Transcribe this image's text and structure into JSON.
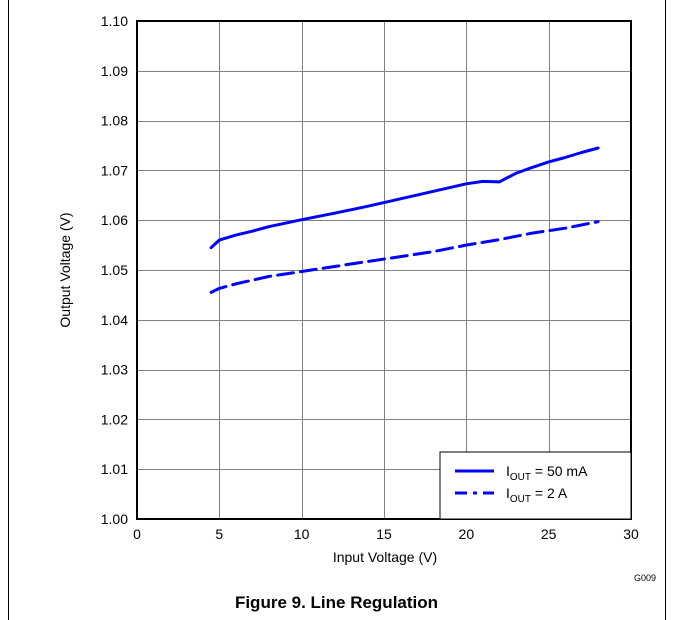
{
  "chart_data": {
    "type": "line",
    "title": "",
    "xlabel": "Input Voltage (V)",
    "ylabel": "Output Voltage (V)",
    "xlim": [
      0,
      30
    ],
    "ylim": [
      1.0,
      1.1
    ],
    "xticks": [
      "0",
      "5",
      "10",
      "15",
      "20",
      "25",
      "30"
    ],
    "yticks": [
      "1.00",
      "1.01",
      "1.02",
      "1.03",
      "1.04",
      "1.05",
      "1.06",
      "1.07",
      "1.08",
      "1.09",
      "1.10"
    ],
    "grid": true,
    "legend_position": "bottom-right",
    "series": [
      {
        "name_prefix": "I",
        "name_sub": "OUT",
        "name_suffix": "= 50 mA",
        "style": "solid",
        "color": "#0000ff",
        "x": [
          4.5,
          5,
          6,
          7,
          8,
          9,
          10,
          12,
          14,
          16,
          18,
          20,
          21,
          22,
          23,
          24,
          25,
          26,
          27,
          28
        ],
        "y": [
          1.0545,
          1.056,
          1.057,
          1.0578,
          1.0587,
          1.0594,
          1.0601,
          1.0614,
          1.0628,
          1.0643,
          1.0658,
          1.0673,
          1.0678,
          1.0677,
          1.0694,
          1.0706,
          1.0717,
          1.0726,
          1.0736,
          1.0745
        ]
      },
      {
        "name_prefix": "I",
        "name_sub": "OUT",
        "name_suffix": "= 2 A",
        "style": "dashed",
        "color": "#0000ff",
        "x": [
          4.5,
          5,
          6,
          8,
          10,
          12,
          14,
          16,
          18,
          20,
          22,
          24,
          26,
          28
        ],
        "y": [
          1.0455,
          1.0463,
          1.0472,
          1.0487,
          1.0497,
          1.0507,
          1.0517,
          1.0527,
          1.0537,
          1.055,
          1.0561,
          1.0574,
          1.0584,
          1.0597
        ]
      }
    ]
  },
  "figure": {
    "code": "G009",
    "caption": "Figure 9. Line Regulation"
  }
}
